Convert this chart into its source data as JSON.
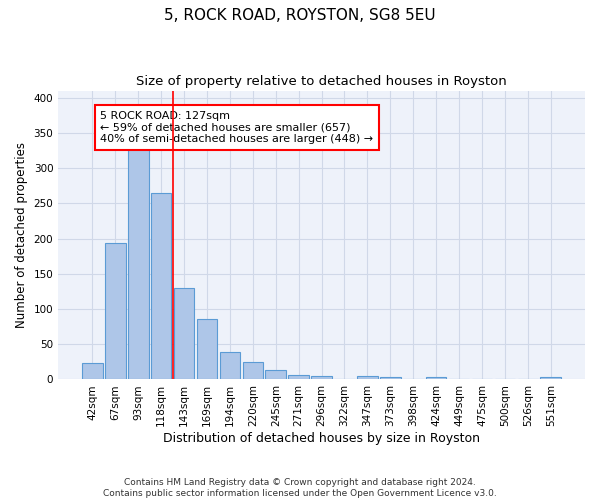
{
  "title": "5, ROCK ROAD, ROYSTON, SG8 5EU",
  "subtitle": "Size of property relative to detached houses in Royston",
  "xlabel": "Distribution of detached houses by size in Royston",
  "ylabel": "Number of detached properties",
  "categories": [
    "42sqm",
    "67sqm",
    "93sqm",
    "118sqm",
    "143sqm",
    "169sqm",
    "194sqm",
    "220sqm",
    "245sqm",
    "271sqm",
    "296sqm",
    "322sqm",
    "347sqm",
    "373sqm",
    "398sqm",
    "424sqm",
    "449sqm",
    "475sqm",
    "500sqm",
    "526sqm",
    "551sqm"
  ],
  "values": [
    23,
    193,
    327,
    265,
    130,
    86,
    39,
    25,
    14,
    7,
    5,
    0,
    5,
    3,
    0,
    4,
    0,
    0,
    0,
    0,
    3
  ],
  "bar_color": "#aec6e8",
  "bar_edge_color": "#5b9bd5",
  "grid_color": "#d0d8e8",
  "bg_color": "#eef2fa",
  "vline_x": 3.5,
  "vline_color": "red",
  "annotation_text": "5 ROCK ROAD: 127sqm\n← 59% of detached houses are smaller (657)\n40% of semi-detached houses are larger (448) →",
  "annotation_box_color": "white",
  "annotation_box_edge": "red",
  "ylim": [
    0,
    410
  ],
  "yticks": [
    0,
    50,
    100,
    150,
    200,
    250,
    300,
    350,
    400
  ],
  "footnote": "Contains HM Land Registry data © Crown copyright and database right 2024.\nContains public sector information licensed under the Open Government Licence v3.0.",
  "title_fontsize": 11,
  "subtitle_fontsize": 9.5,
  "xlabel_fontsize": 9,
  "ylabel_fontsize": 8.5,
  "tick_fontsize": 7.5,
  "annotation_fontsize": 8,
  "footnote_fontsize": 6.5
}
